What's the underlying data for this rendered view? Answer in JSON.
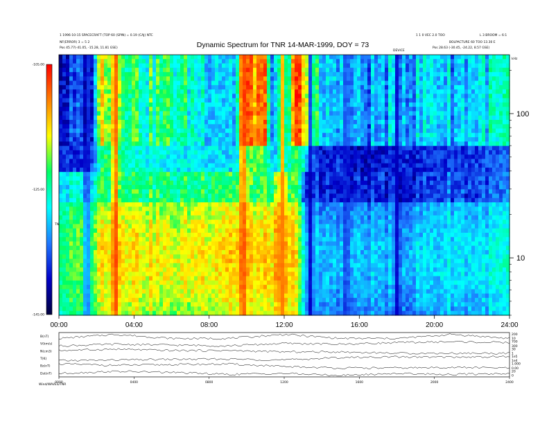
{
  "chart_data": [
    {
      "type": "heatmap",
      "title": "Dynamic Spectrum for TNR 14-MAR-1999, DOY = 73",
      "header_left": [
        "1 1996-10-15 SPACECRAFT (TOP 60 (SPIN) = 0.19 (CAJ) NTC",
        "NF(ERROR) 3 = 5 2",
        "Pos    45.77(-41.05, -15.28, 11.81 GSE)"
      ],
      "header_right": [
        "1 1 0 VEC 2.0 TOO",
        "L 3 BROOM = 6:1",
        "BOLPACTURE 60 TOO 13.30 E",
        "Pos    28.63 (-30.45, -24.22, 8.57 GSE)"
      ],
      "header_center_small": "DEVICE",
      "freq_unit": "kHz",
      "colorbar_label": "TNR",
      "colorbar_ticks": [
        {
          "value": -105,
          "label": "-105.00"
        },
        {
          "value": -125,
          "label": "-125.00"
        },
        {
          "value": -145,
          "label": "-145.00"
        }
      ],
      "clim": [
        -145,
        -105
      ],
      "colormap": [
        "#00003c",
        "#0000c8",
        "#1e78ff",
        "#00ffff",
        "#00ff64",
        "#ffff00",
        "#ff8000",
        "#ff0000"
      ],
      "x_ticks": [
        "00:00",
        "04:00",
        "08:00",
        "12:00",
        "16:00",
        "20:00",
        "24:00"
      ],
      "xlim": [
        0,
        24
      ],
      "y_scale": "log",
      "y_ticks": [
        {
          "value": 10,
          "label": "10"
        },
        {
          "value": 100,
          "label": "100"
        }
      ],
      "ylim": [
        4,
        256
      ],
      "profile_hours": [
        0.0,
        1.0,
        1.7,
        2.3,
        3.0,
        4.0,
        5.0,
        6.0,
        7.0,
        8.0,
        9.0,
        10.0,
        11.0,
        11.8,
        12.6,
        13.2,
        14.0,
        15.0,
        16.0,
        17.0,
        18.0,
        19.0,
        20.0,
        21.0,
        22.0,
        23.0,
        24.0
      ],
      "background_db_profile": [
        -125,
        -124,
        -124,
        -118,
        -117,
        -118,
        -119,
        -120,
        -119,
        -118,
        -117,
        -117,
        -118,
        -116,
        -118,
        -132,
        -134,
        -133,
        -134,
        -133,
        -134,
        -133,
        -132,
        -131,
        -132,
        -131,
        -130
      ],
      "low_band_hours": [
        0.0,
        1.7,
        2.3,
        4.7,
        5.3,
        9.4,
        9.8,
        10.9,
        11.4,
        12.0,
        12.6,
        13.3,
        14.0,
        15.0,
        15.5,
        16.0,
        17.2,
        18.0,
        19.0,
        20.0,
        21.0,
        22.0,
        23.0,
        24.0
      ],
      "low_band_db": [
        -138,
        -137,
        -115,
        -125,
        -123,
        -130,
        -112,
        -110,
        -132,
        -133,
        -110,
        -112,
        -132,
        -128,
        -131,
        -133,
        -132,
        -129,
        -131,
        -128,
        -131,
        -129,
        -128,
        -127
      ],
      "storm_bursts": [
        {
          "hour": 1.5,
          "db": -139
        },
        {
          "hour": 3.0,
          "db": -106
        },
        {
          "hour": 9.8,
          "db": -106
        },
        {
          "hour": 11.9,
          "db": -110
        },
        {
          "hour": 13.4,
          "db": -141
        },
        {
          "hour": 15.3,
          "db": -139
        },
        {
          "hour": 18.0,
          "db": -140
        }
      ]
    },
    {
      "type": "line",
      "title": "",
      "x_ticks": [
        "0000",
        "0400",
        "0800",
        "1200",
        "1600",
        "2000",
        "2400"
      ],
      "xlim": [
        0,
        24
      ],
      "bottom_label": "Wind/WAVES/TNR",
      "series": [
        {
          "name": "B(nT)",
          "right_labels": [
            "200",
            "10"
          ],
          "x": [
            0,
            3,
            6,
            9,
            12,
            15,
            18,
            21,
            24
          ],
          "values": [
            8,
            9,
            8,
            8,
            9,
            8,
            8,
            9,
            8
          ]
        },
        {
          "name": "V(km/s)",
          "right_labels": [
            "700",
            "300"
          ],
          "x": [
            0,
            3,
            6,
            9,
            12,
            15,
            18,
            21,
            24
          ],
          "values": [
            420,
            430,
            425,
            420,
            435,
            430,
            440,
            445,
            440
          ]
        },
        {
          "name": "N(cm3)",
          "right_labels": [
            "30",
            "1"
          ],
          "x": [
            0,
            3,
            6,
            9,
            12,
            15,
            18,
            21,
            24
          ],
          "values": [
            6,
            7,
            6,
            6,
            5,
            5,
            4,
            4,
            4
          ]
        },
        {
          "name": "T(K)",
          "right_labels": [
            "1e5",
            "1e4"
          ],
          "x": [
            0,
            3,
            6,
            9,
            12,
            15,
            18,
            21,
            24
          ],
          "values": [
            50000,
            52000,
            54000,
            55000,
            52000,
            60000,
            62000,
            61000,
            63000
          ]
        },
        {
          "name": "Bz(nT)",
          "right_labels": [
            "1.000",
            "0.00"
          ],
          "x": [
            0,
            3,
            6,
            9,
            12,
            15,
            18,
            21,
            24
          ],
          "values": [
            0.5,
            0.4,
            0.45,
            0.5,
            0.3,
            0.2,
            0.2,
            0.25,
            0.2
          ]
        },
        {
          "name": "Dst(nT)",
          "right_labels": [
            "20",
            "0"
          ],
          "x": [
            0,
            3,
            6,
            9,
            12,
            15,
            18,
            21,
            24
          ],
          "values": [
            10,
            12,
            11,
            9,
            10,
            8,
            10,
            9,
            10
          ]
        }
      ]
    }
  ]
}
